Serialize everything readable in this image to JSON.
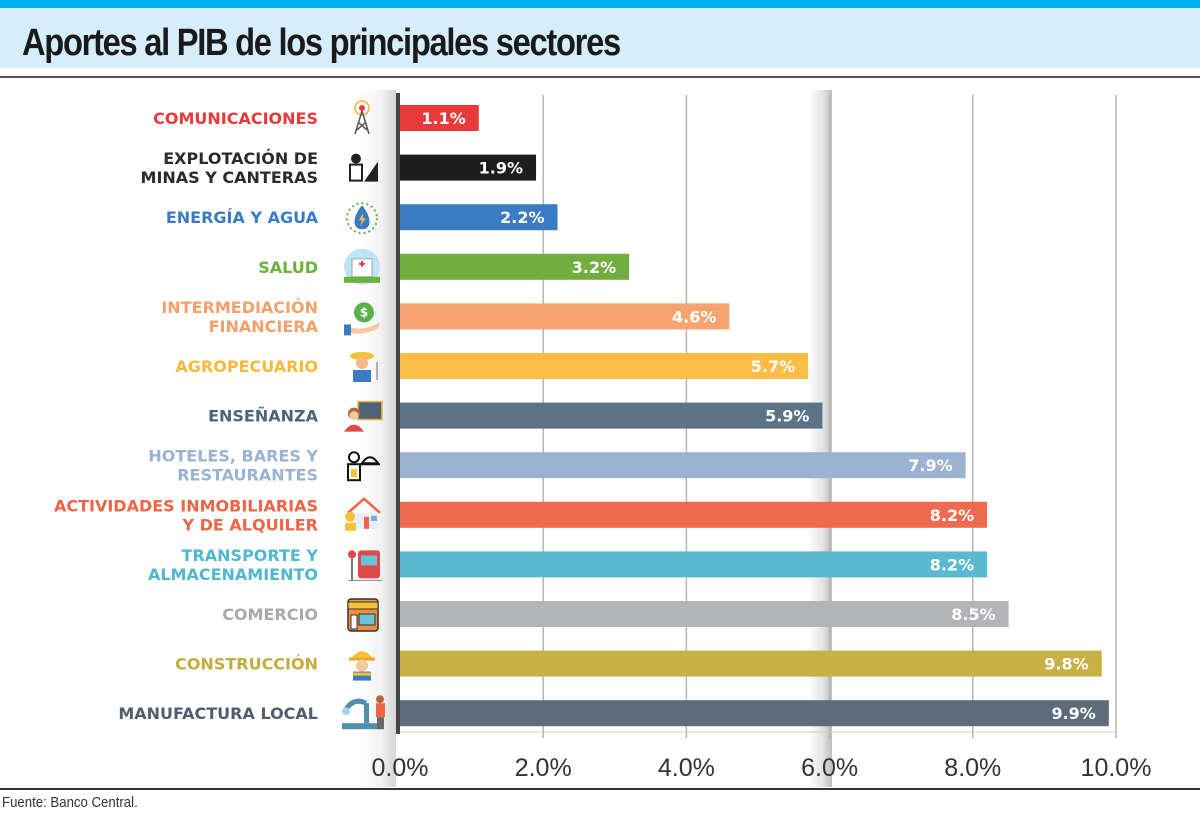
{
  "header": {
    "title": "Aportes al PIB de los principales sectores"
  },
  "footer": {
    "source": "Fuente: Banco Central."
  },
  "chart_data": {
    "type": "bar",
    "orientation": "horizontal",
    "title": "Aportes al PIB de los principales sectores",
    "xlabel": "",
    "ylabel": "",
    "xlim": [
      0,
      10
    ],
    "grid": true,
    "x_ticks": [
      0,
      2,
      4,
      6,
      8,
      10
    ],
    "x_tick_labels": [
      "0.0%",
      "2.0%",
      "4.0%",
      "6.0%",
      "8.0%",
      "10.0%"
    ],
    "categories": [
      {
        "lines": [
          "COMUNICACIONES"
        ],
        "icon": "radio-tower-icon",
        "color": "#e63a3b",
        "bar_color": "#e63a3b"
      },
      {
        "lines": [
          "EXPLOTACIÓN DE",
          "MINAS Y CANTERAS"
        ],
        "icon": "miner-icon",
        "color": "#2b2b2b",
        "bar_color": "#1d1d1d"
      },
      {
        "lines": [
          "ENERGÍA Y AGUA"
        ],
        "icon": "water-energy-icon",
        "color": "#3a7cc3",
        "bar_color": "#3a7cc3"
      },
      {
        "lines": [
          "SALUD"
        ],
        "icon": "hospital-icon",
        "color": "#6ab13d",
        "bar_color": "#72ad3f"
      },
      {
        "lines": [
          "INTERMEDIACIÓN",
          "FINANCIERA"
        ],
        "icon": "money-bag-icon",
        "color": "#f3a06a",
        "bar_color": "#f5a46d"
      },
      {
        "lines": [
          "AGROPECUARIO"
        ],
        "icon": "farmer-icon",
        "color": "#f6b93b",
        "bar_color": "#fbbd45"
      },
      {
        "lines": [
          "ENSEÑANZA"
        ],
        "icon": "teacher-icon",
        "color": "#4d6478",
        "bar_color": "#5c7285"
      },
      {
        "lines": [
          "HOTELES, BARES Y",
          "RESTAURANTES"
        ],
        "icon": "waiter-icon",
        "color": "#9bb3d2",
        "bar_color": "#9cb2d1"
      },
      {
        "lines": [
          "ACTIVIDADES INMOBILIARIAS",
          "Y DE ALQUILER"
        ],
        "icon": "house-icon",
        "color": "#ee6447",
        "bar_color": "#ef6a4f"
      },
      {
        "lines": [
          "TRANSPORTE Y",
          "ALMACENAMIENTO"
        ],
        "icon": "bus-icon",
        "color": "#4fb7cf",
        "bar_color": "#5ab9d0"
      },
      {
        "lines": [
          "COMERCIO"
        ],
        "icon": "store-icon",
        "color": "#a7a9ac",
        "bar_color": "#b3b4b8"
      },
      {
        "lines": [
          "CONSTRUCCIÓN"
        ],
        "icon": "construction-worker-icon",
        "color": "#c4ac3c",
        "bar_color": "#c9b045"
      },
      {
        "lines": [
          "MANUFACTURA LOCAL"
        ],
        "icon": "robot-arm-icon",
        "color": "#4f5f70",
        "bar_color": "#5d6b7b"
      }
    ],
    "values": [
      1.1,
      1.9,
      2.2,
      3.2,
      4.6,
      5.7,
      5.9,
      7.9,
      8.2,
      8.2,
      8.5,
      9.8,
      9.9
    ],
    "value_labels": [
      "1.1%",
      "1.9%",
      "2.2%",
      "3.2%",
      "4.6%",
      "5.7%",
      "5.9%",
      "7.9%",
      "8.2%",
      "8.2%",
      "8.5%",
      "9.8%",
      "9.9%"
    ]
  }
}
